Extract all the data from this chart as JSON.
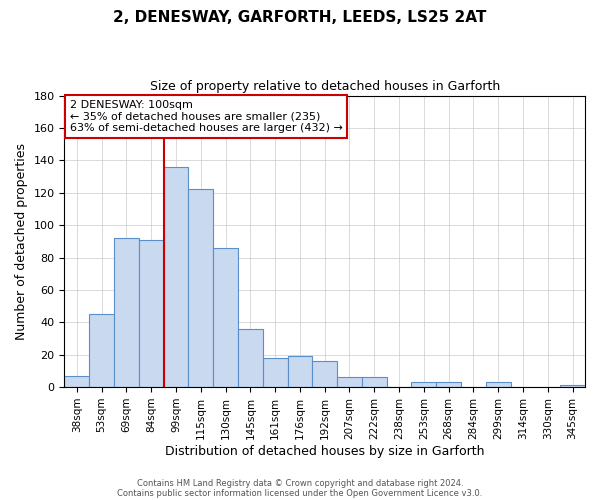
{
  "title": "2, DENESWAY, GARFORTH, LEEDS, LS25 2AT",
  "subtitle": "Size of property relative to detached houses in Garforth",
  "xlabel": "Distribution of detached houses by size in Garforth",
  "ylabel": "Number of detached properties",
  "bar_color": "#c9d9f0",
  "bar_edge_color": "#5b8fc9",
  "categories": [
    "38sqm",
    "53sqm",
    "69sqm",
    "84sqm",
    "99sqm",
    "115sqm",
    "130sqm",
    "145sqm",
    "161sqm",
    "176sqm",
    "192sqm",
    "207sqm",
    "222sqm",
    "238sqm",
    "253sqm",
    "268sqm",
    "284sqm",
    "299sqm",
    "314sqm",
    "330sqm",
    "345sqm"
  ],
  "values": [
    7,
    45,
    92,
    91,
    136,
    122,
    86,
    36,
    18,
    19,
    16,
    6,
    6,
    0,
    3,
    3,
    0,
    3,
    0,
    0,
    1
  ],
  "ylim": [
    0,
    180
  ],
  "yticks": [
    0,
    20,
    40,
    60,
    80,
    100,
    120,
    140,
    160,
    180
  ],
  "marker_bin_index": 4,
  "annotation_title": "2 DENESWAY: 100sqm",
  "annotation_line1": "← 35% of detached houses are smaller (235)",
  "annotation_line2": "63% of semi-detached houses are larger (432) →",
  "marker_color": "#cc0000",
  "grid_color": "#cccccc",
  "bg_color": "#ffffff",
  "footer_line1": "Contains HM Land Registry data © Crown copyright and database right 2024.",
  "footer_line2": "Contains public sector information licensed under the Open Government Licence v3.0."
}
